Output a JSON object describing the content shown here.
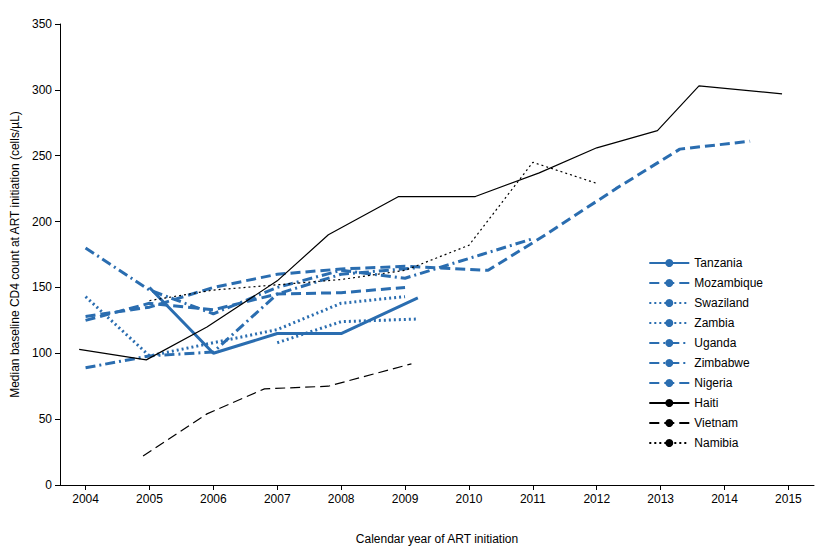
{
  "chart_data": {
    "type": "line",
    "x_label": "Calendar year of ART initiation",
    "y_label": "Median baseline CD4 count at ART initiation (cells/µL)",
    "xlim": [
      2003.6,
      2015.4
    ],
    "xticks": [
      2004,
      2005,
      2006,
      2007,
      2008,
      2009,
      2010,
      2011,
      2012,
      2013,
      2014,
      2015
    ],
    "ylim": [
      0,
      350
    ],
    "yticks": [
      0,
      50,
      100,
      150,
      200,
      250,
      300,
      350
    ],
    "grid": false,
    "legend": "right",
    "series": [
      {
        "name": "Tanzania",
        "color": "#2a6db0",
        "line_style": "solid",
        "x": [
          2005,
          2006,
          2007,
          2008,
          2009.2
        ],
        "values": [
          150,
          100,
          115,
          115,
          142
        ]
      },
      {
        "name": "Mozambique",
        "color": "#2a6db0",
        "line_style": "dashed",
        "x": [
          2004,
          2005,
          2006,
          2007,
          2008,
          2009
        ],
        "values": [
          125,
          138,
          133,
          145,
          146,
          150
        ]
      },
      {
        "name": "Swaziland",
        "color": "#2a6db0",
        "line_style": "dotted",
        "x": [
          2004,
          2005,
          2006,
          2007,
          2008,
          2009
        ],
        "values": [
          143,
          98,
          108,
          118,
          138,
          143
        ]
      },
      {
        "name": "Zambia",
        "color": "#2a6db0",
        "line_style": "dotted",
        "x": [
          2007,
          2008,
          2009.2
        ],
        "values": [
          108,
          124,
          126
        ]
      },
      {
        "name": "Uganda",
        "color": "#2a6db0",
        "line_style": "dashdot",
        "x": [
          2004,
          2005,
          2006,
          2007,
          2008,
          2009,
          2010.2,
          2011
        ],
        "values": [
          180,
          148,
          130,
          150,
          163,
          157,
          175,
          187
        ]
      },
      {
        "name": "Zimbabwe",
        "color": "#2a6db0",
        "line_style": "dashdot",
        "x": [
          2004,
          2005,
          2006,
          2007,
          2008,
          2009.2
        ],
        "values": [
          89,
          98,
          101,
          145,
          160,
          165
        ]
      },
      {
        "name": "Nigeria",
        "color": "#2a6db0",
        "line_style": "dashed",
        "x": [
          2004,
          2005,
          2006,
          2007,
          2008,
          2009,
          2010.3,
          2011.2,
          2012.3,
          2013.3,
          2014.4
        ],
        "values": [
          128,
          135,
          150,
          160,
          164,
          166,
          163,
          190,
          225,
          255,
          261
        ]
      },
      {
        "name": "Haiti",
        "color": "#000000",
        "line_style": "solid",
        "x": [
          2003.9,
          2004.95,
          2005.9,
          2007,
          2007.8,
          2008.9,
          2010.1,
          2011.1,
          2012,
          2012.95,
          2013.6,
          2014.9
        ],
        "values": [
          103,
          95,
          120,
          155,
          190,
          219,
          219,
          237,
          256,
          269,
          303,
          297
        ]
      },
      {
        "name": "Vietnam",
        "color": "#000000",
        "line_style": "dashed",
        "x": [
          2004.9,
          2005.9,
          2006.8,
          2007.8,
          2009.1
        ],
        "values": [
          22,
          54,
          73,
          75,
          92
        ]
      },
      {
        "name": "Namibia",
        "color": "#000000",
        "line_style": "dotted",
        "x": [
          2005,
          2006,
          2007,
          2008,
          2009,
          2010,
          2011,
          2012
        ],
        "values": [
          140,
          148,
          152,
          156,
          163,
          182,
          245,
          229
        ]
      }
    ]
  }
}
